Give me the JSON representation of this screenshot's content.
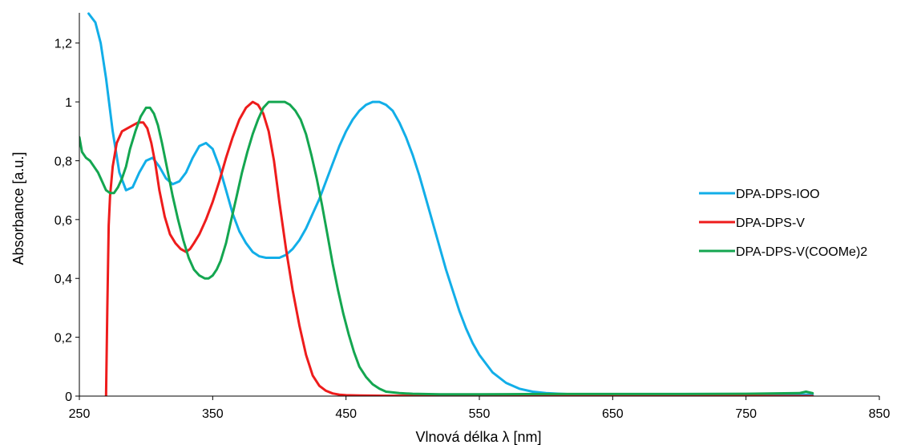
{
  "chart_data": {
    "type": "line",
    "xlabel": "Vlnová délka λ [nm]",
    "ylabel": "Absorbance [a.u.]",
    "xlim": [
      250,
      850
    ],
    "ylim": [
      0,
      1.3
    ],
    "xticks": [
      250,
      350,
      450,
      550,
      650,
      750,
      850
    ],
    "xtick_labels": [
      "250",
      "350",
      "450",
      "550",
      "650",
      "750",
      "850"
    ],
    "yticks": [
      0,
      0.2,
      0.4,
      0.6,
      0.8,
      1.0,
      1.2
    ],
    "ytick_labels": [
      "0",
      "0,2",
      "0,4",
      "0,6",
      "0,8",
      "1",
      "1,2"
    ],
    "grid": false,
    "legend_position": "right",
    "series": [
      {
        "name": "DPA-DPS-IOO",
        "color": "#12aee8",
        "x": [
          257,
          262,
          266,
          270,
          275,
          280,
          285,
          290,
          295,
          300,
          305,
          310,
          315,
          320,
          325,
          330,
          335,
          340,
          345,
          350,
          355,
          360,
          365,
          370,
          375,
          380,
          385,
          390,
          395,
          400,
          405,
          410,
          415,
          420,
          425,
          430,
          435,
          440,
          445,
          450,
          455,
          460,
          465,
          470,
          475,
          480,
          485,
          490,
          495,
          500,
          505,
          510,
          515,
          520,
          525,
          530,
          535,
          540,
          545,
          550,
          560,
          570,
          580,
          590,
          600,
          610,
          620,
          630,
          640,
          650,
          700,
          750,
          800
        ],
        "y": [
          1.3,
          1.27,
          1.2,
          1.08,
          0.9,
          0.76,
          0.7,
          0.71,
          0.76,
          0.8,
          0.81,
          0.78,
          0.74,
          0.72,
          0.73,
          0.76,
          0.81,
          0.85,
          0.86,
          0.84,
          0.78,
          0.7,
          0.62,
          0.56,
          0.52,
          0.49,
          0.475,
          0.47,
          0.47,
          0.47,
          0.48,
          0.5,
          0.53,
          0.57,
          0.62,
          0.67,
          0.73,
          0.79,
          0.85,
          0.9,
          0.94,
          0.97,
          0.99,
          1.0,
          1.0,
          0.99,
          0.97,
          0.93,
          0.88,
          0.82,
          0.75,
          0.67,
          0.59,
          0.51,
          0.43,
          0.36,
          0.29,
          0.23,
          0.18,
          0.14,
          0.08,
          0.045,
          0.025,
          0.015,
          0.01,
          0.008,
          0.006,
          0.005,
          0.005,
          0.005,
          0.005,
          0.005,
          0.005
        ]
      },
      {
        "name": "DPA-DPS-V",
        "color": "#ee1c1c",
        "x": [
          270,
          271,
          272,
          273,
          275,
          278,
          282,
          286,
          290,
          294,
          298,
          301,
          304,
          307,
          310,
          314,
          318,
          322,
          326,
          330,
          333,
          336,
          340,
          345,
          350,
          355,
          360,
          365,
          370,
          375,
          380,
          384,
          388,
          392,
          396,
          400,
          405,
          410,
          415,
          420,
          425,
          430,
          435,
          440,
          445,
          450,
          460,
          480,
          500,
          550,
          600,
          650,
          700,
          750,
          800
        ],
        "y": [
          0.0,
          0.3,
          0.58,
          0.68,
          0.78,
          0.86,
          0.9,
          0.91,
          0.92,
          0.93,
          0.93,
          0.91,
          0.86,
          0.79,
          0.7,
          0.61,
          0.55,
          0.52,
          0.5,
          0.49,
          0.5,
          0.52,
          0.55,
          0.6,
          0.66,
          0.73,
          0.81,
          0.88,
          0.94,
          0.98,
          1.0,
          0.99,
          0.96,
          0.9,
          0.8,
          0.66,
          0.5,
          0.36,
          0.24,
          0.14,
          0.07,
          0.035,
          0.018,
          0.009,
          0.005,
          0.003,
          0.002,
          0.001,
          0.001,
          0.0,
          0.0,
          0.0,
          0.0,
          0.0,
          0.0
        ]
      },
      {
        "name": "DPA-DPS-V(COOMe)2",
        "color": "#14a650",
        "x": [
          250,
          252,
          255,
          258,
          261,
          264,
          267,
          270,
          273,
          276,
          279,
          282,
          285,
          288,
          292,
          296,
          300,
          303,
          306,
          309,
          312,
          316,
          320,
          324,
          328,
          332,
          336,
          340,
          344,
          347,
          350,
          353,
          356,
          360,
          364,
          368,
          372,
          376,
          380,
          384,
          388,
          392,
          396,
          400,
          404,
          408,
          412,
          416,
          420,
          424,
          428,
          432,
          436,
          440,
          444,
          448,
          452,
          456,
          460,
          465,
          470,
          475,
          480,
          490,
          500,
          520,
          550,
          600,
          650,
          700,
          750,
          790,
          795,
          800
        ],
        "y": [
          0.88,
          0.83,
          0.81,
          0.8,
          0.78,
          0.76,
          0.73,
          0.7,
          0.69,
          0.69,
          0.71,
          0.74,
          0.78,
          0.84,
          0.9,
          0.95,
          0.98,
          0.98,
          0.96,
          0.92,
          0.86,
          0.77,
          0.68,
          0.6,
          0.53,
          0.47,
          0.43,
          0.41,
          0.4,
          0.4,
          0.41,
          0.43,
          0.46,
          0.52,
          0.6,
          0.68,
          0.76,
          0.83,
          0.89,
          0.94,
          0.98,
          1.0,
          1.0,
          1.0,
          1.0,
          0.99,
          0.97,
          0.94,
          0.89,
          0.82,
          0.74,
          0.65,
          0.55,
          0.45,
          0.36,
          0.28,
          0.21,
          0.15,
          0.1,
          0.065,
          0.04,
          0.025,
          0.015,
          0.01,
          0.008,
          0.006,
          0.006,
          0.007,
          0.007,
          0.007,
          0.008,
          0.01,
          0.015,
          0.01
        ]
      }
    ]
  }
}
